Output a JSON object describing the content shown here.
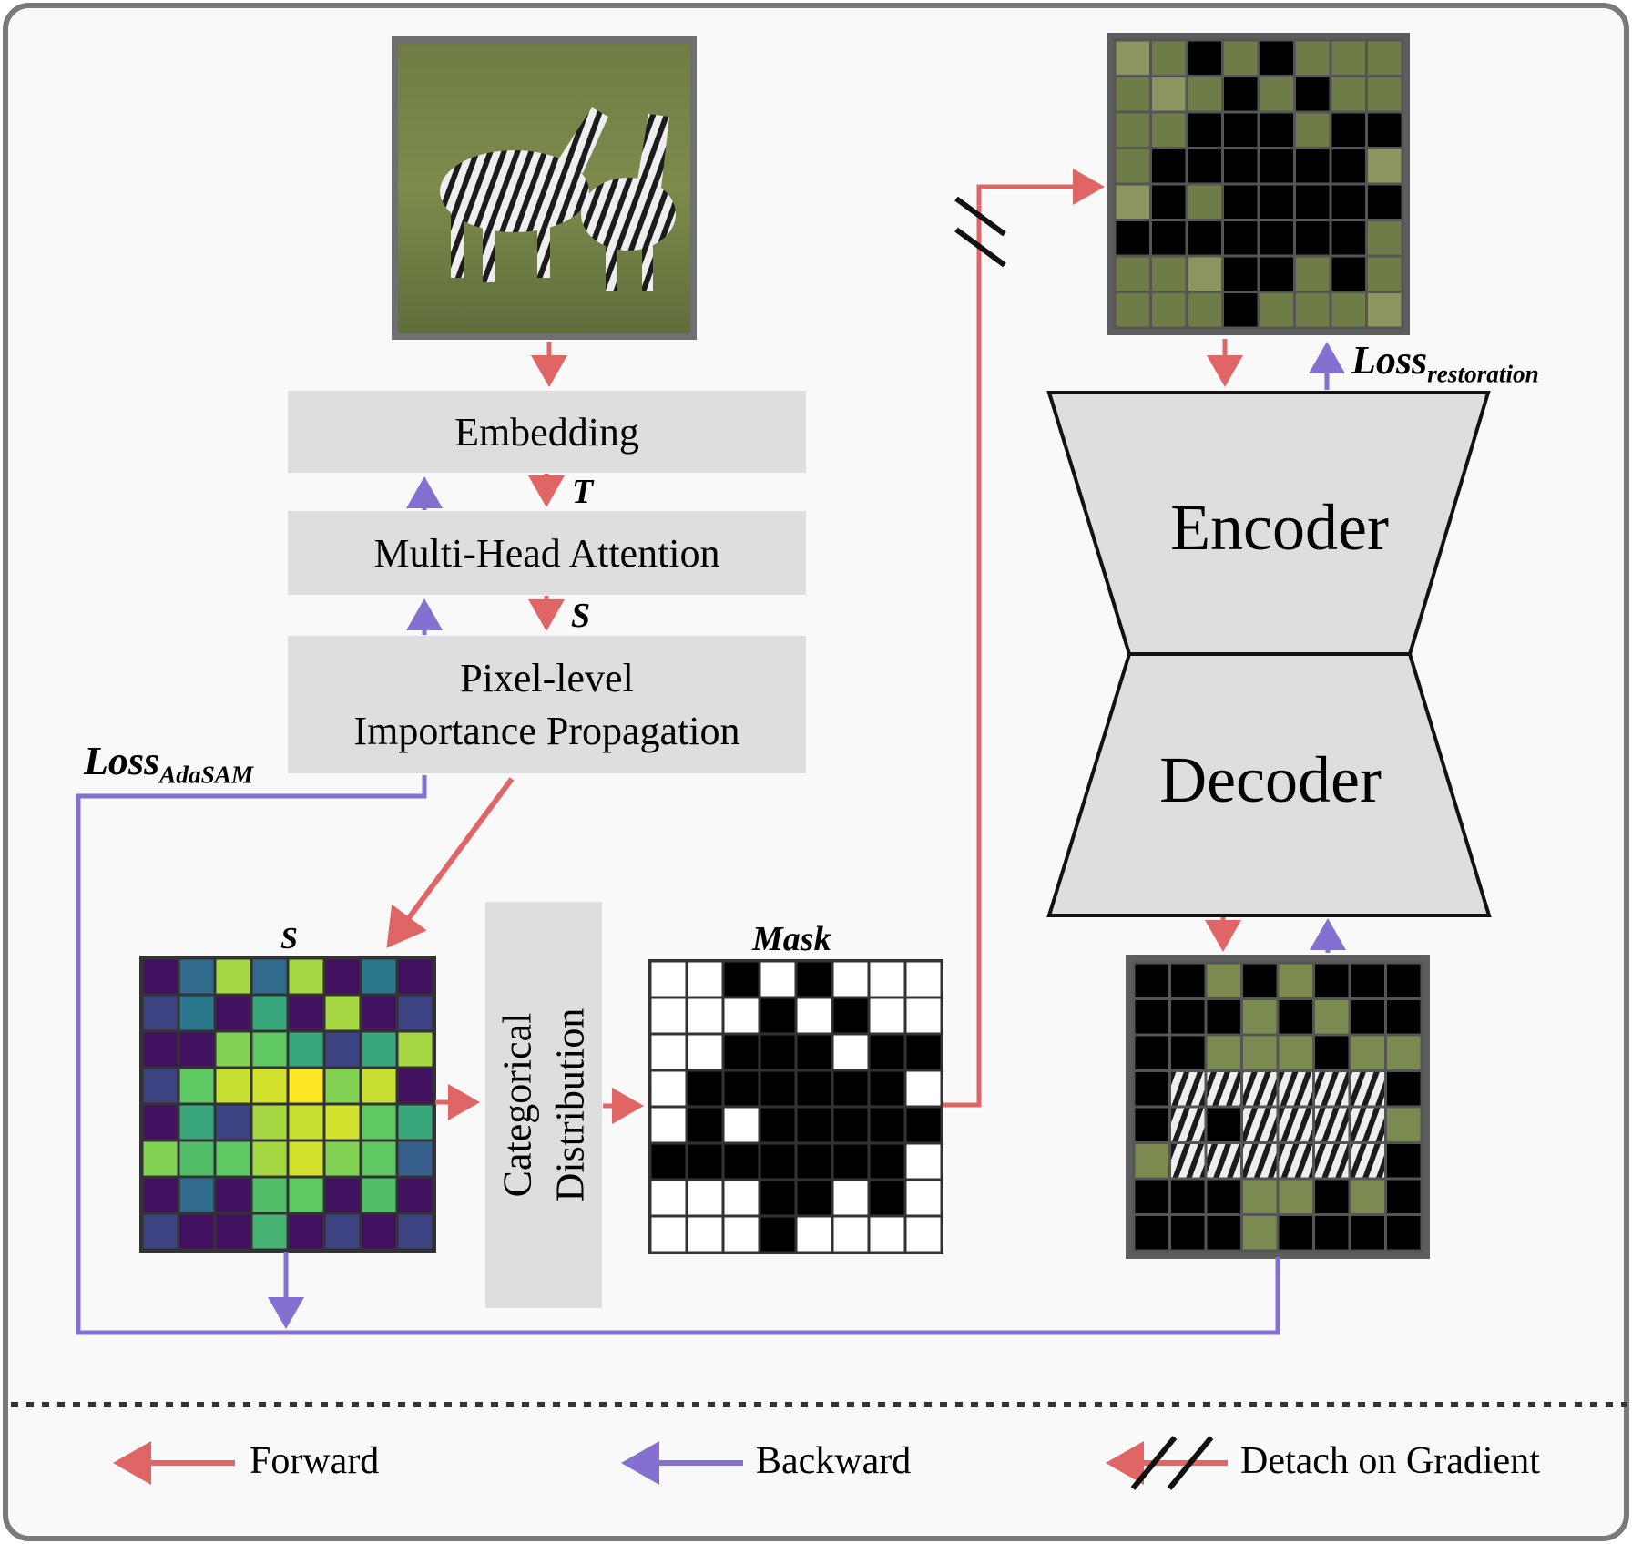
{
  "blocks": {
    "embedding": "Embedding",
    "mha": "Multi-Head Attention",
    "pixel_line1": "Pixel-level",
    "pixel_line2": "Importance Propagation",
    "categorical_line1": "Categorical",
    "categorical_line2": "Distribution",
    "encoder": "Encoder",
    "decoder": "Decoder"
  },
  "symbols": {
    "t": "T",
    "s_arrow": "S",
    "s_grid": "S",
    "mask": "Mask"
  },
  "losses": {
    "adasam_main": "Loss",
    "adasam_sub": "AdaSAM",
    "restoration_main": "Loss",
    "restoration_sub": "restoration"
  },
  "legend": {
    "forward": "Forward",
    "backward": "Backward",
    "detach": "Detach on Gradient"
  },
  "colors": {
    "forward": "#e06666",
    "backward": "#8470d0",
    "block_fill": "#dedede",
    "frame": "#7a7a7a"
  },
  "s_grid_values": [
    [
      0.05,
      0.35,
      0.85,
      0.35,
      0.85,
      0.05,
      0.4,
      0.05
    ],
    [
      0.2,
      0.4,
      0.05,
      0.6,
      0.05,
      0.85,
      0.05,
      0.2
    ],
    [
      0.05,
      0.05,
      0.8,
      0.75,
      0.6,
      0.2,
      0.6,
      0.85
    ],
    [
      0.2,
      0.75,
      0.9,
      0.92,
      1.0,
      0.8,
      0.9,
      0.05
    ],
    [
      0.05,
      0.6,
      0.2,
      0.85,
      0.9,
      0.92,
      0.75,
      0.6
    ],
    [
      0.8,
      0.7,
      0.75,
      0.85,
      0.92,
      0.8,
      0.75,
      0.3
    ],
    [
      0.05,
      0.35,
      0.05,
      0.7,
      0.75,
      0.05,
      0.7,
      0.05
    ],
    [
      0.2,
      0.05,
      0.05,
      0.65,
      0.05,
      0.2,
      0.05,
      0.2
    ]
  ],
  "mask_grid": [
    [
      0,
      0,
      1,
      0,
      1,
      0,
      0,
      0
    ],
    [
      0,
      0,
      0,
      1,
      0,
      1,
      0,
      0
    ],
    [
      0,
      0,
      1,
      1,
      1,
      0,
      1,
      1
    ],
    [
      0,
      1,
      1,
      1,
      1,
      1,
      1,
      0
    ],
    [
      0,
      1,
      0,
      1,
      1,
      1,
      1,
      1
    ],
    [
      1,
      1,
      1,
      1,
      1,
      1,
      1,
      0
    ],
    [
      0,
      0,
      0,
      1,
      1,
      0,
      1,
      0
    ],
    [
      0,
      0,
      0,
      1,
      0,
      0,
      0,
      0
    ]
  ],
  "masked_input_grid": [
    [
      0,
      0,
      1,
      0,
      1,
      0,
      0,
      0
    ],
    [
      0,
      0,
      0,
      1,
      0,
      1,
      0,
      0
    ],
    [
      0,
      0,
      1,
      1,
      1,
      0,
      1,
      1
    ],
    [
      0,
      1,
      1,
      1,
      1,
      1,
      1,
      0
    ],
    [
      0,
      1,
      0,
      1,
      1,
      1,
      1,
      1
    ],
    [
      1,
      1,
      1,
      1,
      1,
      1,
      1,
      0
    ],
    [
      0,
      0,
      0,
      1,
      1,
      0,
      1,
      0
    ],
    [
      0,
      0,
      0,
      1,
      0,
      0,
      0,
      0
    ]
  ],
  "restored_grid": [
    [
      1,
      1,
      0,
      1,
      0,
      1,
      1,
      1
    ],
    [
      1,
      1,
      1,
      0,
      1,
      0,
      1,
      1
    ],
    [
      1,
      1,
      0,
      0,
      0,
      1,
      0,
      0
    ],
    [
      1,
      0,
      0,
      0,
      0,
      0,
      0,
      1
    ],
    [
      1,
      0,
      1,
      0,
      0,
      0,
      0,
      0
    ],
    [
      0,
      0,
      0,
      0,
      0,
      0,
      0,
      1
    ],
    [
      1,
      1,
      1,
      0,
      0,
      1,
      0,
      1
    ],
    [
      1,
      1,
      1,
      0,
      1,
      1,
      1,
      1
    ]
  ]
}
